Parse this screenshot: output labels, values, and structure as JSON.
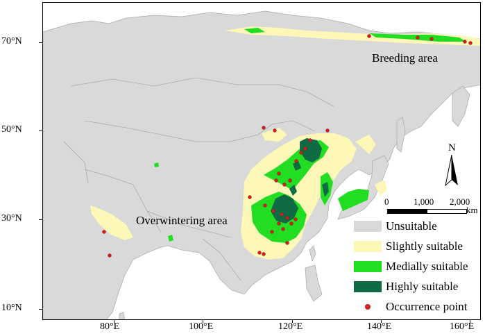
{
  "map": {
    "lat_labels": [
      "70°N",
      "50°N",
      "30°N",
      "10°N"
    ],
    "lon_labels": [
      "80°E",
      "100°E",
      "120°E",
      "140°E",
      "160°E"
    ],
    "region_labels": {
      "breeding": "Breeding area",
      "overwintering": "Overwintering area"
    },
    "north_label": "N",
    "scale": {
      "labels": [
        "0",
        "1,000",
        "2,000"
      ],
      "unit": "km"
    },
    "legend": [
      {
        "label": "Unsuitable",
        "color": "#d9d9d9"
      },
      {
        "label": "Slightly suitable",
        "color": "#fdf8b8"
      },
      {
        "label": "Medially suitable",
        "color": "#22dd22"
      },
      {
        "label": "Highly suitable",
        "color": "#0e6b43"
      },
      {
        "label": "Occurrence point",
        "color": "#d11f1f"
      }
    ]
  }
}
